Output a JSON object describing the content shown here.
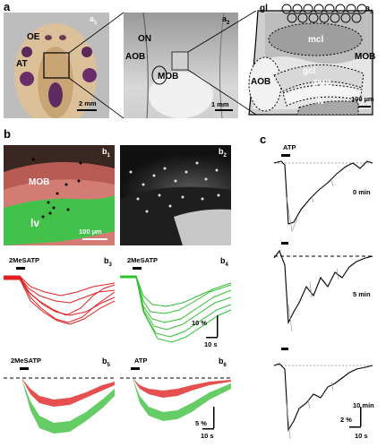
{
  "panel_a": {
    "label": "a",
    "sub1": "a",
    "sub2": "a",
    "sub3": "a",
    "sub1_idx": "1",
    "sub2_idx": "2",
    "sub3_idx": "3",
    "a1_labels": {
      "oe": "OE",
      "at": "AT",
      "scale": "2 mm"
    },
    "a2_labels": {
      "on": "ON",
      "aob": "AOB",
      "mob": "MOB",
      "scale": "1 mm"
    },
    "a3_labels": {
      "gl": "gl",
      "mcl": "mcl",
      "mob": "MOB",
      "aob": "AOB",
      "gcl": "gcl",
      "pvz": "PVZ",
      "lv": "lv",
      "scale": "100 µm"
    }
  },
  "panel_b": {
    "label": "b",
    "b1": {
      "idx": "1",
      "mob": "MOB",
      "lv": "lv",
      "scale": "100 µm"
    },
    "b2": {
      "idx": "2"
    },
    "b3": {
      "idx": "3",
      "stim": "2MeSATP"
    },
    "b4": {
      "idx": "4",
      "stim": "2MeSATP",
      "yscale": "10 %",
      "xscale": "10 s"
    },
    "b5": {
      "idx": "5",
      "stim": "2MeSATP"
    },
    "b6": {
      "idx": "6",
      "stim": "ATP",
      "yscale": "5 %",
      "xscale": "10 s"
    }
  },
  "panel_c": {
    "label": "c",
    "stim": "ATP",
    "t0": "0 min",
    "t5": "5 min",
    "t10": "10 min",
    "yscale": "2 %",
    "xscale": "10 s"
  }
}
